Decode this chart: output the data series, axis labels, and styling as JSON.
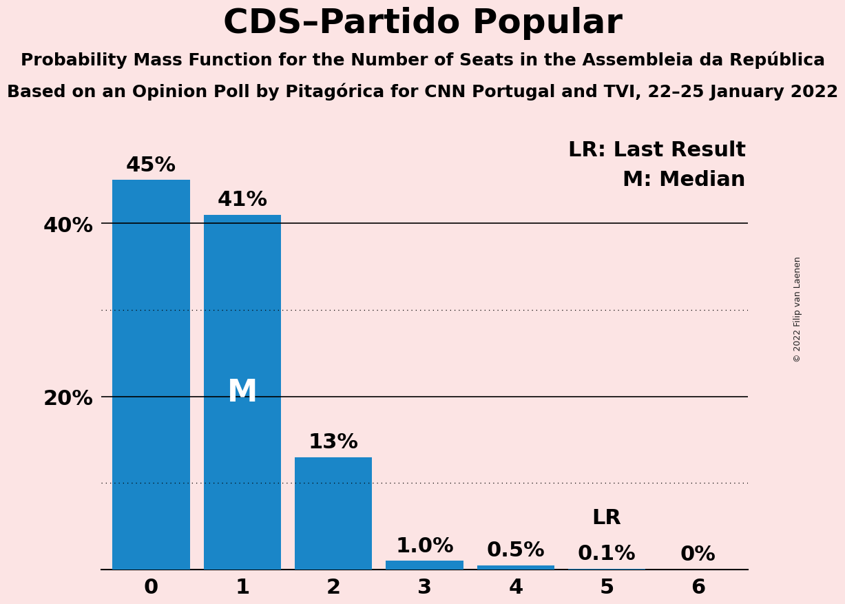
{
  "title": "CDS–Partido Popular",
  "subtitle1": "Probability Mass Function for the Number of Seats in the Assembleia da República",
  "subtitle2": "Based on an Opinion Poll by Pitagórica for CNN Portugal and TVI, 22–25 January 2022",
  "copyright": "© 2022 Filip van Laenen",
  "categories": [
    0,
    1,
    2,
    3,
    4,
    5,
    6
  ],
  "values": [
    0.45,
    0.41,
    0.13,
    0.01,
    0.005,
    0.001,
    0.0
  ],
  "bar_color": "#1a86c8",
  "background_color": "#fce4e4",
  "solid_gridlines": [
    0.2,
    0.4
  ],
  "dotted_gridlines": [
    0.1,
    0.3
  ],
  "median_bar": 1,
  "lr_bar": 5,
  "annotations": {
    "0": "45%",
    "1": "41%",
    "2": "13%",
    "3": "1.0%",
    "4": "0.5%",
    "5": "0.1%",
    "6": "0%"
  },
  "legend_lr": "LR: Last Result",
  "legend_m": "M: Median",
  "title_fontsize": 36,
  "subtitle_fontsize": 18,
  "tick_fontsize": 22,
  "annotation_fontsize": 22,
  "m_fontsize": 32,
  "lr_label_fontsize": 22,
  "legend_fontsize": 22,
  "copyright_fontsize": 9,
  "ylim": [
    0,
    0.5
  ],
  "bar_width": 0.85
}
